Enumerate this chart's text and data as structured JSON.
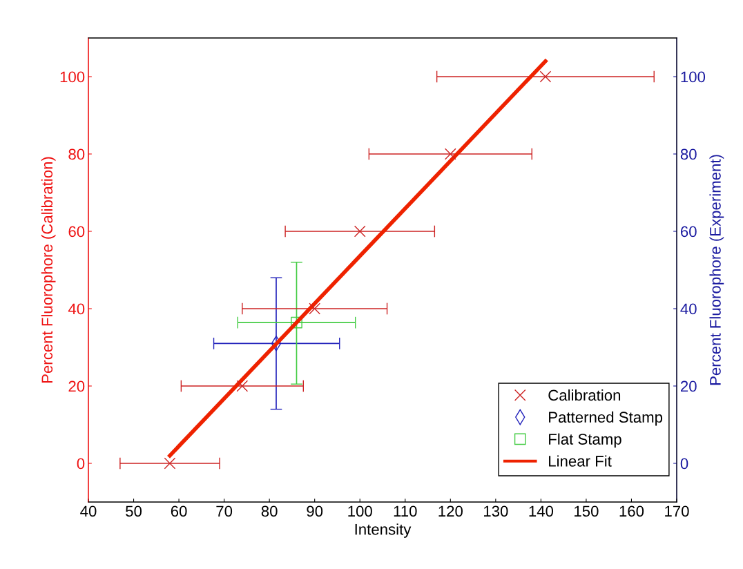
{
  "chart_data": {
    "type": "scatter",
    "xlabel": "Intensity",
    "ylabel": "Percent Fluorophore (Calibration)",
    "y2label": "Percent Fluorophore (Experiment)",
    "xlim": [
      40,
      170
    ],
    "xticks": [
      40,
      50,
      60,
      70,
      80,
      90,
      100,
      110,
      120,
      130,
      140,
      150,
      160,
      170
    ],
    "ylim": [
      -10,
      110
    ],
    "yticks": [
      0,
      20,
      40,
      60,
      80,
      100
    ],
    "y2lim": [
      -10,
      110
    ],
    "y2ticks": [
      0,
      20,
      40,
      60,
      80,
      100
    ],
    "grid": false,
    "legend": "bottom right",
    "series": [
      {
        "name": "Calibration",
        "color": "#cc2222",
        "marker": "cross",
        "x": [
          58,
          74,
          90,
          100,
          120,
          141
        ],
        "values": [
          0,
          20,
          40,
          60,
          80,
          100
        ],
        "xerrors": [
          [
            47,
            69
          ],
          [
            60.5,
            87.5
          ],
          [
            74,
            106
          ],
          [
            83.5,
            116.5
          ],
          [
            102,
            138
          ],
          [
            117,
            165
          ]
        ]
      },
      {
        "name": "Patterned Stamp",
        "axis": "y2",
        "color": "#2222bb",
        "marker": "diamond",
        "x": [
          81.5
        ],
        "values": [
          31
        ],
        "xerrors": [
          [
            67.7,
            95.5
          ]
        ],
        "errors": [
          [
            14,
            48
          ]
        ]
      },
      {
        "name": "Flat Stamp",
        "axis": "y2",
        "color": "#44cc44",
        "marker": "square",
        "x": [
          86
        ],
        "values": [
          36.4
        ],
        "xerrors": [
          [
            73,
            99
          ]
        ],
        "errors": [
          [
            20.5,
            52
          ]
        ]
      },
      {
        "name": "Linear Fit",
        "type": "line",
        "color": "#ee2200",
        "marker": "none",
        "line_style": "solid",
        "x": [
          58,
          141
        ],
        "values": [
          2,
          104
        ]
      }
    ]
  }
}
